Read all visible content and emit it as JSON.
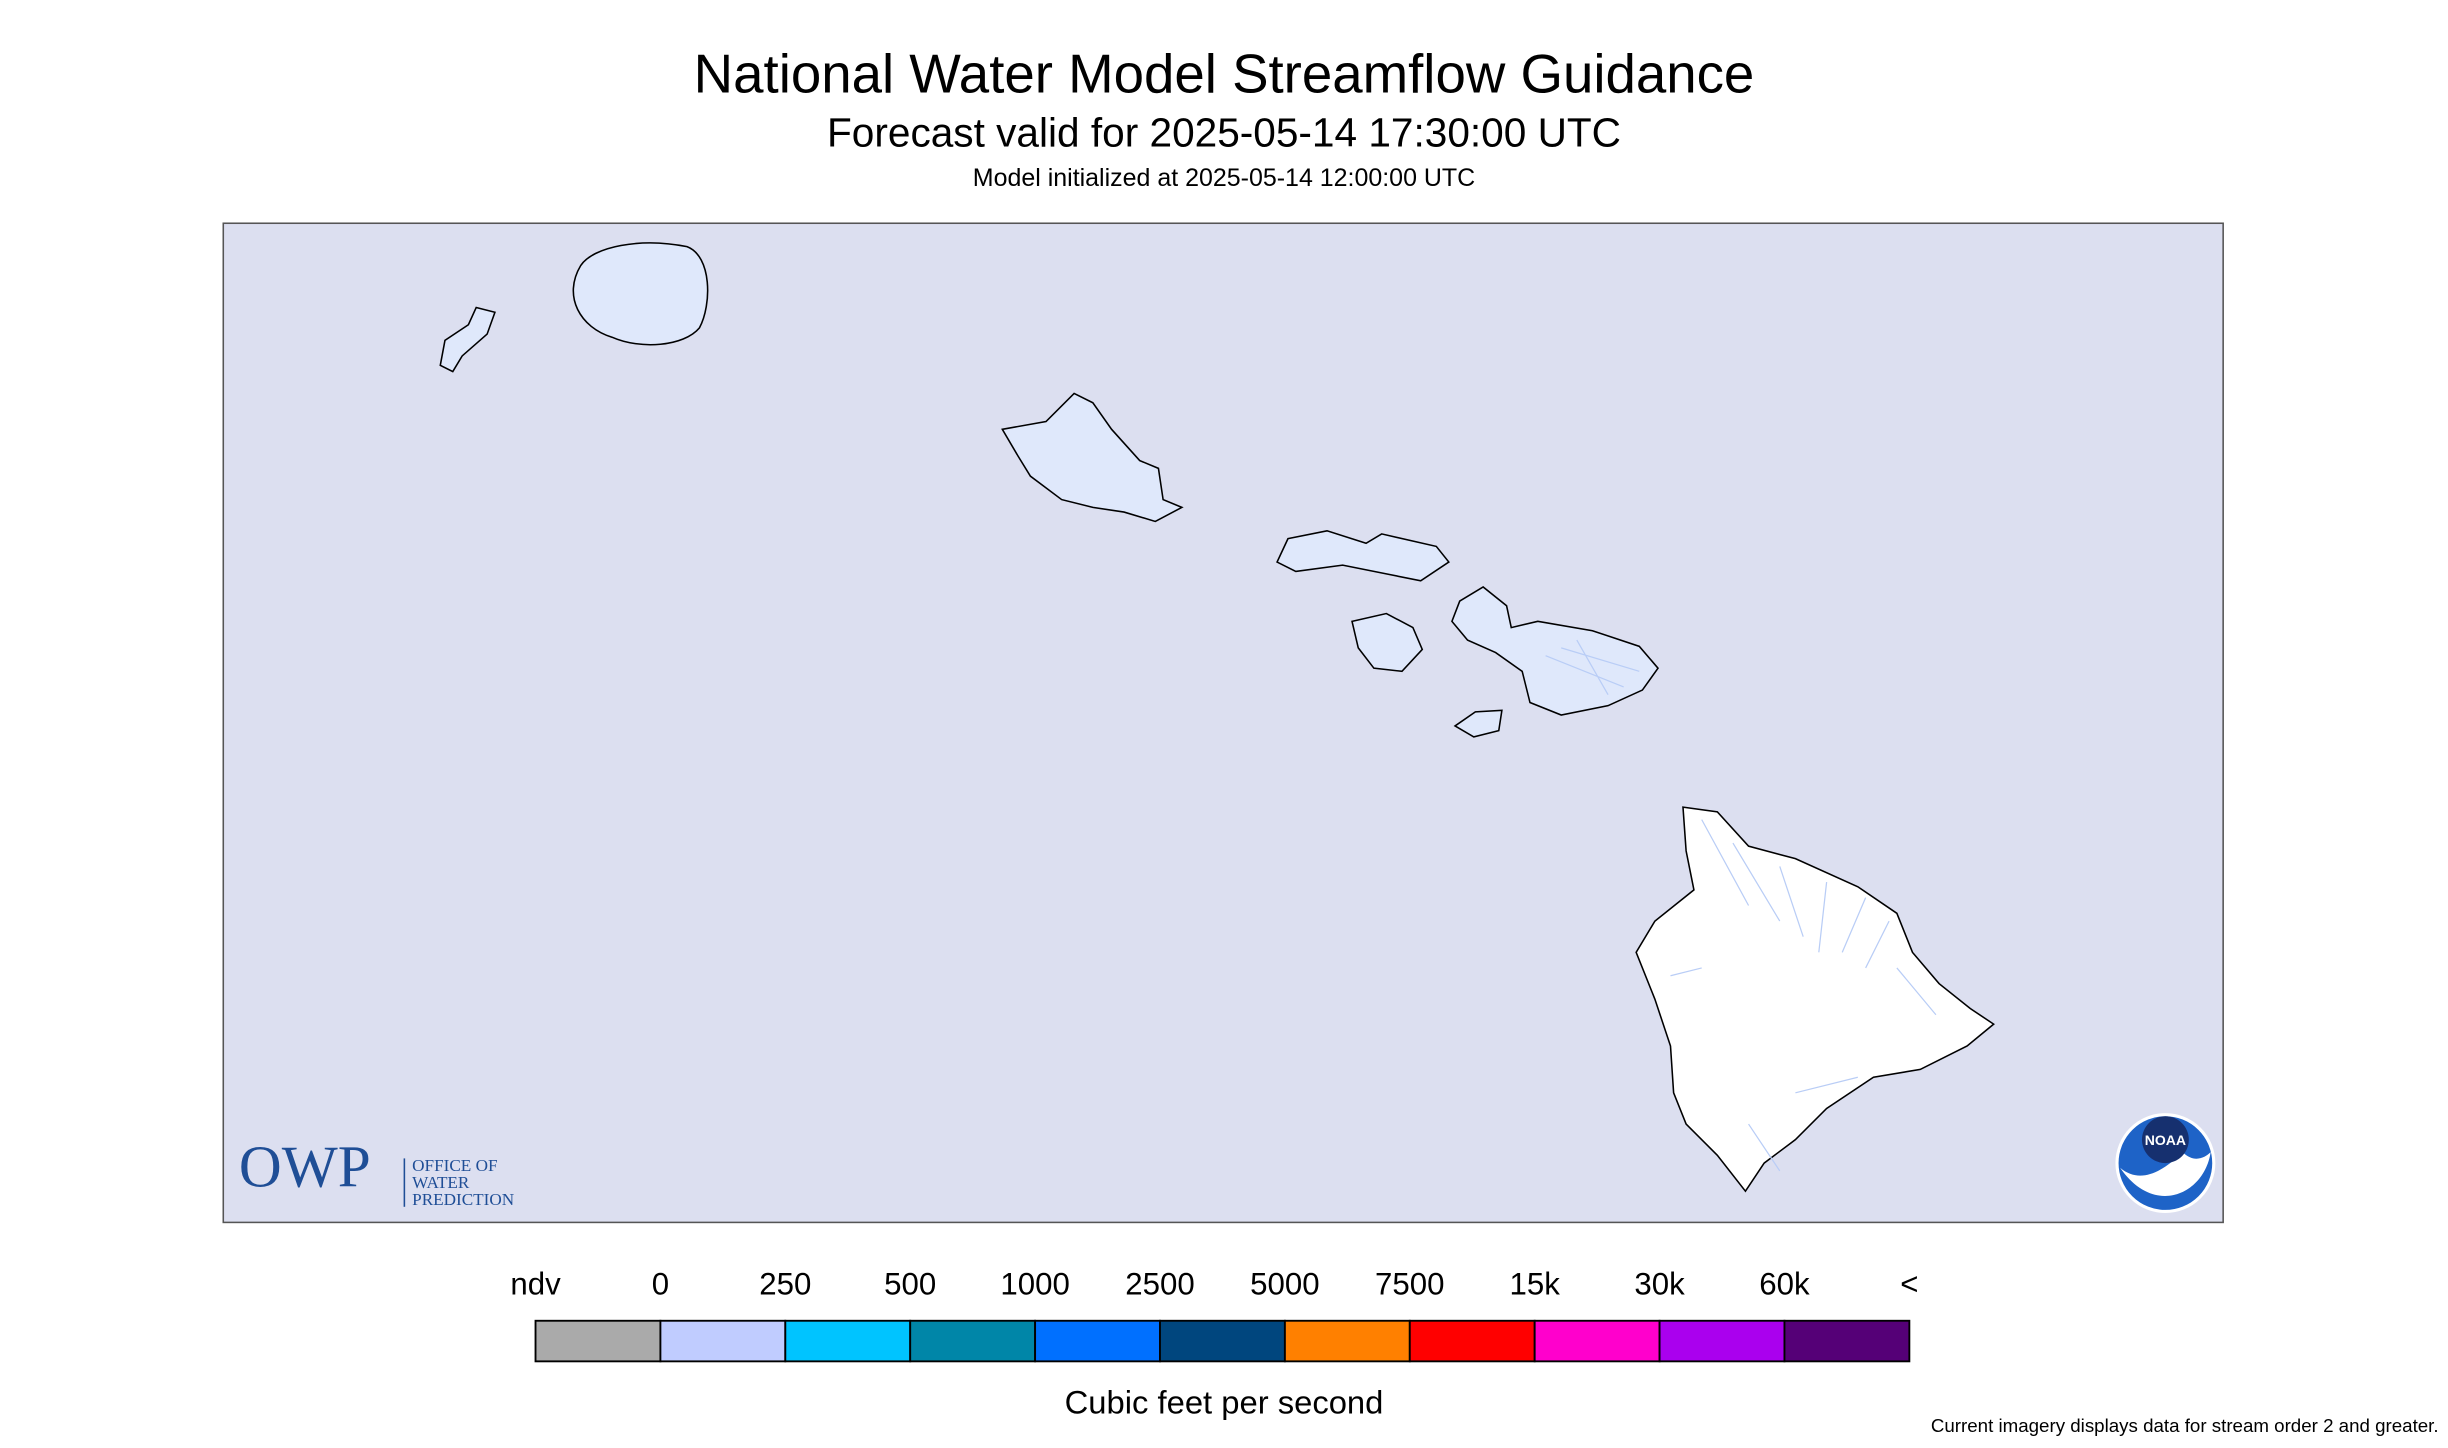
{
  "title": "National Water Model Streamflow Guidance",
  "subtitle": "Forecast valid for 2025-05-14 17:30:00 UTC",
  "initialized": "Model initialized at 2025-05-14 12:00:00 UTC",
  "legend": {
    "labels": [
      "ndv",
      "0",
      "250",
      "500",
      "1000",
      "2500",
      "5000",
      "7500",
      "15k",
      "30k",
      "60k",
      "<"
    ],
    "colors": [
      "#aaaaaa",
      "#c0ccff",
      "#00c4ff",
      "#0086a8",
      "#0070ff",
      "#00467e",
      "#ff8000",
      "#ff0000",
      "#ff00cc",
      "#aa00ee",
      "#550077"
    ],
    "unit": "Cubic feet per second"
  },
  "footnote": "Current imagery displays data for stream order 2 and greater.",
  "logos": {
    "owp": "OWP",
    "owp_lines": [
      "OFFICE OF",
      "WATER",
      "PREDICTION"
    ],
    "noaa": "NOAA"
  }
}
